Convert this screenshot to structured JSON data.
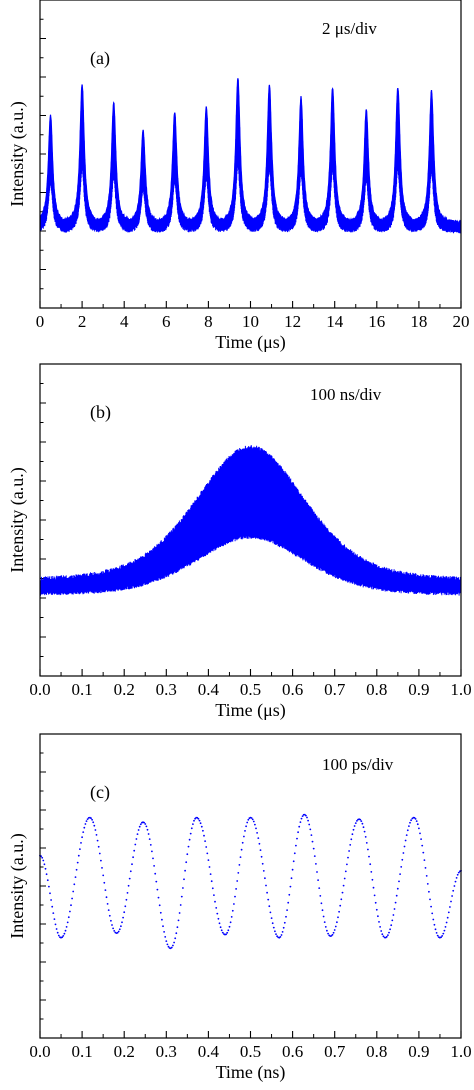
{
  "figure": {
    "background": "#ffffff",
    "trace_color": "#0000ff"
  },
  "chart_data": [
    {
      "panel": "a",
      "type": "line",
      "tag": "(a)",
      "annotation": "2 μs/div",
      "xlabel": "Time (μs)",
      "ylabel": "Intensity (a.u.)",
      "xlim": [
        0,
        20
      ],
      "ylim": [
        0,
        1
      ],
      "xticks": [
        "0",
        "2",
        "4",
        "6",
        "8",
        "10",
        "12",
        "14",
        "16",
        "18",
        "20"
      ],
      "grid": false,
      "series": [
        {
          "style": "dense-envelope",
          "baseline": [
            0.25,
            0.27
          ],
          "peaks": [
            {
              "t": 0.5,
              "peak": 0.62
            },
            {
              "t": 2.0,
              "peak": 0.72
            },
            {
              "t": 3.5,
              "peak": 0.66
            },
            {
              "t": 4.9,
              "peak": 0.57
            },
            {
              "t": 6.4,
              "peak": 0.63
            },
            {
              "t": 7.9,
              "peak": 0.65
            },
            {
              "t": 9.4,
              "peak": 0.74
            },
            {
              "t": 10.9,
              "peak": 0.72
            },
            {
              "t": 12.4,
              "peak": 0.68
            },
            {
              "t": 13.9,
              "peak": 0.71
            },
            {
              "t": 15.5,
              "peak": 0.64
            },
            {
              "t": 17.0,
              "peak": 0.71
            },
            {
              "t": 18.6,
              "peak": 0.7
            }
          ]
        }
      ]
    },
    {
      "panel": "b",
      "type": "line",
      "tag": "(b)",
      "annotation": "100 ns/div",
      "xlabel": "Time (μs)",
      "ylabel": "Intensity (a.u.)",
      "xlim": [
        0.0,
        1.0
      ],
      "ylim": [
        0,
        1
      ],
      "xticks": [
        "0.0",
        "0.1",
        "0.2",
        "0.3",
        "0.4",
        "0.5",
        "0.6",
        "0.7",
        "0.8",
        "0.9",
        "1.0"
      ],
      "grid": false,
      "series": [
        {
          "style": "dense-envelope",
          "baseline": [
            0.26,
            0.29
          ],
          "center": 0.5,
          "lower_peak": 0.45,
          "upper_peak": 0.73
        }
      ]
    },
    {
      "panel": "c",
      "type": "scatter",
      "tag": "(c)",
      "annotation": "100 ps/div",
      "xlabel": "Time (ns)",
      "ylabel": "Intensity (a.u.)",
      "xlim": [
        0.0,
        1.0
      ],
      "ylim": [
        0,
        1
      ],
      "xticks": [
        "0.0",
        "0.1",
        "0.2",
        "0.3",
        "0.4",
        "0.5",
        "0.6",
        "0.7",
        "0.8",
        "0.9",
        "1.0"
      ],
      "grid": false,
      "series": [
        {
          "style": "dotted",
          "maxima": [
            {
              "x": 0.118,
              "y": 0.725
            },
            {
              "x": 0.245,
              "y": 0.71
            },
            {
              "x": 0.372,
              "y": 0.725
            },
            {
              "x": 0.5,
              "y": 0.725
            },
            {
              "x": 0.628,
              "y": 0.735
            },
            {
              "x": 0.758,
              "y": 0.72
            },
            {
              "x": 0.888,
              "y": 0.725
            }
          ],
          "minima": [
            {
              "x": 0.05,
              "y": 0.33
            },
            {
              "x": 0.182,
              "y": 0.345
            },
            {
              "x": 0.31,
              "y": 0.295
            },
            {
              "x": 0.44,
              "y": 0.34
            },
            {
              "x": 0.568,
              "y": 0.33
            },
            {
              "x": 0.69,
              "y": 0.335
            },
            {
              "x": 0.82,
              "y": 0.33
            },
            {
              "x": 0.95,
              "y": 0.33
            }
          ],
          "start": {
            "x": 0.0,
            "y": 0.6
          },
          "end": {
            "x": 1.0,
            "y": 0.55
          }
        }
      ]
    }
  ]
}
